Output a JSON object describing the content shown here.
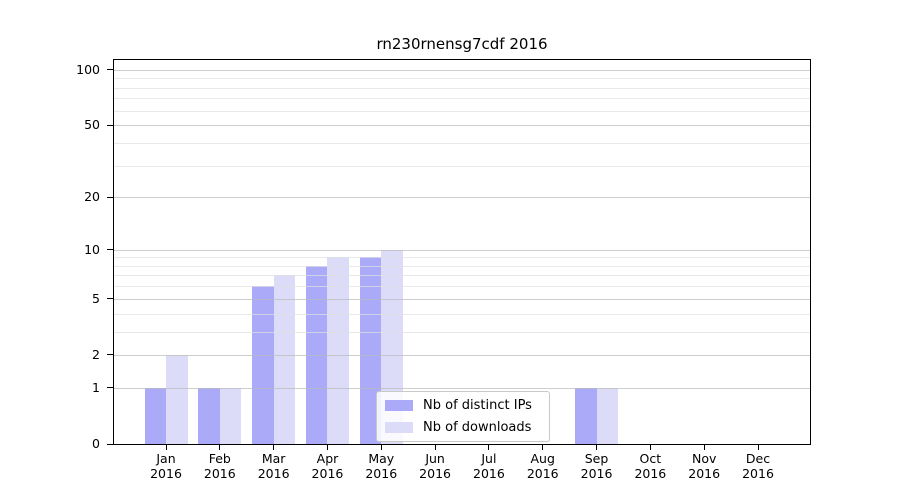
{
  "title": "rn230rnensg7cdf 2016",
  "legend": {
    "items": [
      {
        "label": "Nb of distinct IPs",
        "series_key": "ips"
      },
      {
        "label": "Nb of downloads",
        "series_key": "downloads"
      }
    ]
  },
  "colors": {
    "ips_bar": "#aaaaf8",
    "downloads_bar": "#dcdcf8",
    "grid_major": "rgba(185,185,185,0.7)",
    "grid_minor": "rgba(223,223,223,0.7)",
    "axis": "#000000",
    "text": "#000000"
  },
  "chart_data": {
    "type": "bar",
    "title": "rn230rnensg7cdf 2016",
    "categories": [
      "Jan",
      "Feb",
      "Mar",
      "Apr",
      "May",
      "Jun",
      "Jul",
      "Aug",
      "Sep",
      "Oct",
      "Nov",
      "Dec"
    ],
    "x_year": "2016",
    "series": [
      {
        "name": "Nb of distinct IPs",
        "values": [
          1,
          1,
          6,
          8,
          9,
          0,
          0,
          0,
          1,
          0,
          0,
          0
        ]
      },
      {
        "name": "Nb of downloads",
        "values": [
          2,
          1,
          7,
          9,
          10,
          0,
          0,
          0,
          1,
          0,
          0,
          0
        ]
      }
    ],
    "yscale": "log1p",
    "ytick_labels": [
      0,
      1,
      2,
      5,
      10,
      20,
      50,
      100
    ],
    "yticks_minor": [
      3,
      4,
      6,
      7,
      8,
      9,
      30,
      40,
      60,
      70,
      80,
      90
    ],
    "ylim": [
      0,
      113
    ],
    "grid": true,
    "legend_position": "lower center"
  }
}
